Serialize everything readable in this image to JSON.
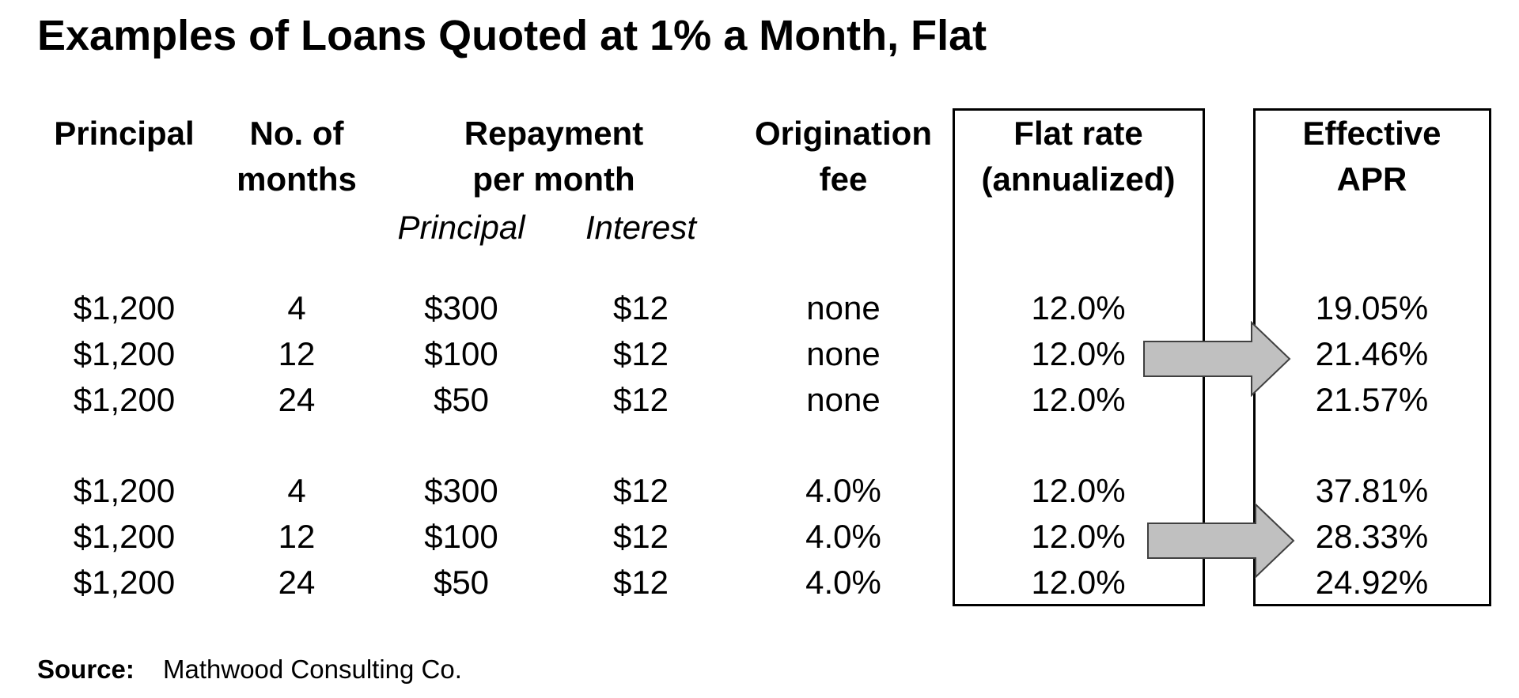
{
  "title": "Examples of Loans Quoted at 1% a Month, Flat",
  "headers": {
    "principal": [
      "Principal"
    ],
    "months": [
      "No. of",
      "months"
    ],
    "repayment": [
      "Repayment",
      "per month"
    ],
    "repayment_sub": [
      "Principal",
      "Interest"
    ],
    "origination": [
      "Origination",
      "fee"
    ],
    "flat_rate": [
      "Flat rate",
      "(annualized)"
    ],
    "apr": [
      "Effective",
      "APR"
    ]
  },
  "groups": [
    {
      "rows": [
        {
          "principal": "$1,200",
          "months": "4",
          "repay_principal": "$300",
          "repay_interest": "$12",
          "fee": "none",
          "flat_rate": "12.0%",
          "apr": "19.05%"
        },
        {
          "principal": "$1,200",
          "months": "12",
          "repay_principal": "$100",
          "repay_interest": "$12",
          "fee": "none",
          "flat_rate": "12.0%",
          "apr": "21.46%"
        },
        {
          "principal": "$1,200",
          "months": "24",
          "repay_principal": "$50",
          "repay_interest": "$12",
          "fee": "none",
          "flat_rate": "12.0%",
          "apr": "21.57%"
        }
      ]
    },
    {
      "rows": [
        {
          "principal": "$1,200",
          "months": "4",
          "repay_principal": "$300",
          "repay_interest": "$12",
          "fee": "4.0%",
          "flat_rate": "12.0%",
          "apr": "37.81%"
        },
        {
          "principal": "$1,200",
          "months": "12",
          "repay_principal": "$100",
          "repay_interest": "$12",
          "fee": "4.0%",
          "flat_rate": "12.0%",
          "apr": "28.33%"
        },
        {
          "principal": "$1,200",
          "months": "24",
          "repay_principal": "$50",
          "repay_interest": "$12",
          "fee": "4.0%",
          "flat_rate": "12.0%",
          "apr": "24.92%"
        }
      ]
    }
  ],
  "source": {
    "label": "Source:",
    "value": "Mathwood Consulting Co."
  },
  "colors": {
    "arrow_fill": "#c0c0c0",
    "arrow_stroke": "#404040"
  }
}
